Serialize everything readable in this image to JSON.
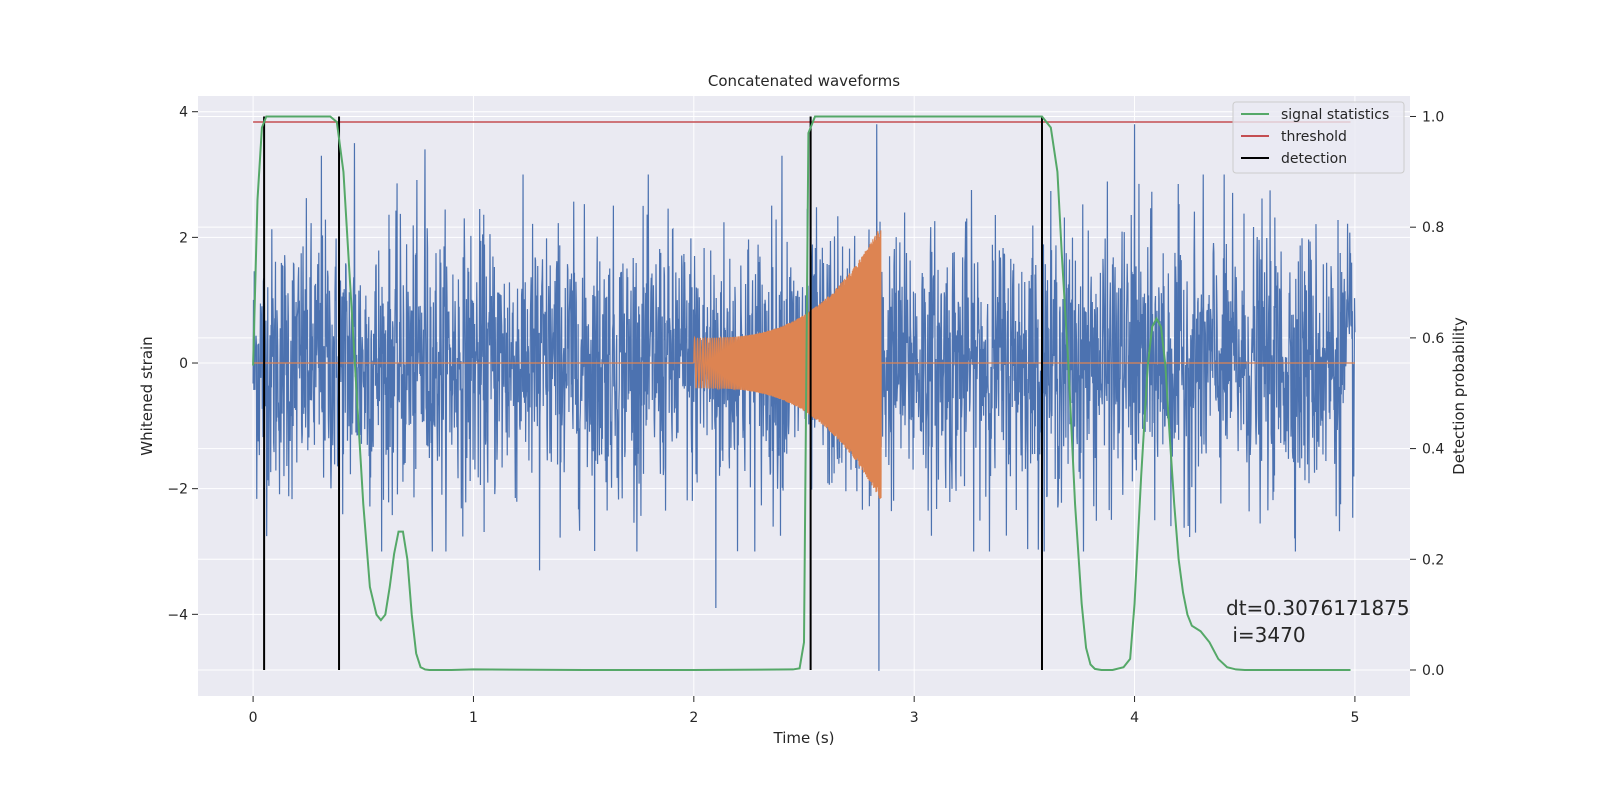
{
  "chart_data": {
    "type": "line",
    "title": "Concatenated waveforms",
    "xlabel": "Time (s)",
    "ylabel": "Whitened strain",
    "y2label": "Detection probability",
    "xlim": [
      -0.25,
      5.25
    ],
    "ylim": [
      -5.3,
      4.25
    ],
    "y2lim": [
      -0.047,
      1.037
    ],
    "x_ticks": [
      0,
      1,
      2,
      3,
      4,
      5
    ],
    "y_ticks": [
      -4,
      -2,
      0,
      2,
      4
    ],
    "y2_ticks": [
      0.0,
      0.2,
      0.4,
      0.6,
      0.8,
      1.0
    ],
    "x_tick_labels": [
      "0",
      "1",
      "2",
      "3",
      "4",
      "5"
    ],
    "y_tick_labels": [
      "−4",
      "−2",
      "0",
      "2",
      "4"
    ],
    "y2_tick_labels": [
      "0.0",
      "0.2",
      "0.4",
      "0.6",
      "0.8",
      "1.0"
    ],
    "grid": true,
    "legend_position": "top-right",
    "colors": {
      "strain": "#4c72b0",
      "injected": "#dd8452",
      "signal_statistics": "#55a868",
      "threshold": "#c44e52",
      "detection": "#000000",
      "background": "#eaeaf2",
      "grid": "#ffffff"
    },
    "series": [
      {
        "name": "signal statistics",
        "axis": "right",
        "x": [
          0.0,
          0.02,
          0.04,
          0.06,
          0.08,
          0.1,
          0.15,
          0.2,
          0.25,
          0.3,
          0.35,
          0.38,
          0.41,
          0.44,
          0.47,
          0.5,
          0.53,
          0.56,
          0.58,
          0.6,
          0.62,
          0.64,
          0.66,
          0.68,
          0.7,
          0.72,
          0.74,
          0.76,
          0.78,
          0.8,
          0.9,
          1.0,
          1.5,
          2.0,
          2.45,
          2.48,
          2.5,
          2.52,
          2.55,
          2.6,
          3.0,
          3.5,
          3.58,
          3.62,
          3.65,
          3.67,
          3.7,
          3.73,
          3.76,
          3.78,
          3.8,
          3.82,
          3.85,
          3.9,
          3.95,
          3.98,
          4.0,
          4.03,
          4.06,
          4.08,
          4.1,
          4.12,
          4.14,
          4.16,
          4.18,
          4.2,
          4.22,
          4.24,
          4.26,
          4.3,
          4.34,
          4.38,
          4.42,
          4.46,
          4.5,
          4.6,
          4.8,
          4.98
        ],
        "values": [
          0.55,
          0.85,
          0.98,
          1.0,
          1.0,
          1.0,
          1.0,
          1.0,
          1.0,
          1.0,
          1.0,
          0.99,
          0.9,
          0.7,
          0.5,
          0.3,
          0.15,
          0.1,
          0.09,
          0.1,
          0.15,
          0.21,
          0.25,
          0.25,
          0.2,
          0.1,
          0.03,
          0.005,
          0.001,
          0.0,
          0.0,
          0.001,
          0.0,
          0.0,
          0.001,
          0.003,
          0.05,
          0.97,
          1.0,
          1.0,
          1.0,
          1.0,
          1.0,
          0.98,
          0.9,
          0.75,
          0.55,
          0.3,
          0.12,
          0.04,
          0.01,
          0.002,
          0.0,
          0.0,
          0.005,
          0.02,
          0.12,
          0.35,
          0.55,
          0.62,
          0.635,
          0.62,
          0.55,
          0.42,
          0.3,
          0.2,
          0.14,
          0.1,
          0.08,
          0.07,
          0.05,
          0.02,
          0.005,
          0.001,
          0.0,
          0.0,
          0.0,
          0.0
        ]
      },
      {
        "name": "threshold",
        "axis": "right",
        "x": [
          0.0,
          4.98
        ],
        "values": [
          0.99,
          0.99
        ]
      },
      {
        "name": "detection",
        "axis": "right",
        "x_positions": [
          0.05,
          0.39,
          2.53,
          3.58
        ],
        "range": [
          0.0,
          1.0
        ]
      },
      {
        "axis": "left",
        "kind": "strain",
        "x_range": [
          0,
          5
        ],
        "noise_amplitude": 1.5,
        "peaks": [
          {
            "x": 0.31,
            "y": 3.3
          },
          {
            "x": 0.46,
            "y": 3.5
          },
          {
            "x": 0.78,
            "y": 3.4
          },
          {
            "x": 1.3,
            "y": -3.3
          },
          {
            "x": 2.1,
            "y": -3.9
          },
          {
            "x": 2.4,
            "y": 3.3
          },
          {
            "x": 2.83,
            "y": 3.8
          },
          {
            "x": 2.84,
            "y": -4.9
          },
          {
            "x": 4.0,
            "y": 3.8
          }
        ]
      },
      {
        "axis": "left",
        "kind": "injected chirp",
        "x_range": [
          2.0,
          2.85
        ],
        "amplitude_start": 0.4,
        "amplitude_end": 2.2
      }
    ],
    "legend": [
      "signal statistics",
      "threshold",
      "detection"
    ],
    "annotations": [
      "dt=0.3076171875",
      " i=3470"
    ]
  }
}
